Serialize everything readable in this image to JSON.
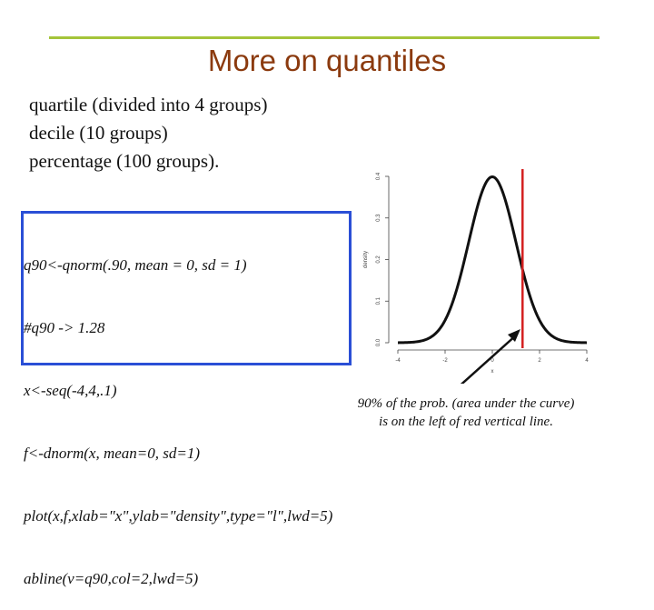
{
  "slide": {
    "title": "More on quantiles",
    "bullets": [
      "quartile (divided into 4 groups)",
      "decile (10 groups)",
      "percentage (100 groups)."
    ],
    "code": [
      "q90<-qnorm(.90, mean = 0, sd = 1)",
      "#q90 -> 1.28",
      "x<-seq(-4,4,.1)",
      "f<-dnorm(x, mean=0, sd=1)",
      "plot(x,f,xlab=\"x\",ylab=\"density\",type=\"l\",lwd=5)",
      "abline(v=q90,col=2,lwd=5)"
    ],
    "caption": [
      "90% of the prob. (area under the curve)",
      "is on the left of red vertical line."
    ]
  },
  "colors": {
    "accent_rule": "#a4c43a",
    "title": "#8b3a0e",
    "code_border": "#2a4fd6",
    "vline": "#d42020"
  },
  "chart_data": {
    "type": "line",
    "xlabel": "x",
    "ylabel": "density",
    "xlim": [
      -4,
      4
    ],
    "ylim": [
      0,
      0.4
    ],
    "x_ticks": [
      "-4",
      "-2",
      "0",
      "2",
      "4"
    ],
    "y_ticks": [
      "0.0",
      "0.1",
      "0.2",
      "0.3",
      "0.4"
    ],
    "series": [
      {
        "x": [
          -4,
          -3.5,
          -3,
          -2.5,
          -2,
          -1.5,
          -1,
          -0.5,
          0,
          0.5,
          1,
          1.5,
          2,
          2.5,
          3,
          3.5,
          4
        ],
        "values": [
          0.0001,
          0.0009,
          0.0044,
          0.0175,
          0.054,
          0.1295,
          0.242,
          0.3521,
          0.3989,
          0.3521,
          0.242,
          0.1295,
          0.054,
          0.0175,
          0.0044,
          0.0009,
          0.0001
        ]
      }
    ],
    "vline": 1.28
  }
}
